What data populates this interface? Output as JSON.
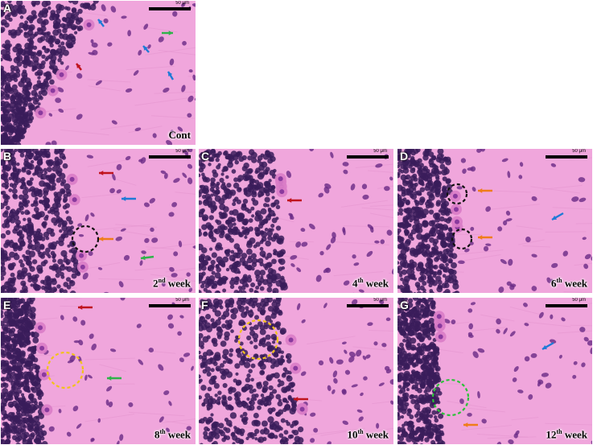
{
  "scale_bar_label": "50 μm",
  "week_word": "week",
  "panels": [
    {
      "letter": "A",
      "caption": "Cont"
    },
    {
      "letter": "B",
      "num": "2",
      "sup": "nd"
    },
    {
      "letter": "C",
      "num": "4",
      "sup": "th"
    },
    {
      "letter": "D",
      "num": "6",
      "sup": "th"
    },
    {
      "letter": "E",
      "num": "8",
      "sup": "th"
    },
    {
      "letter": "F",
      "num": "10",
      "sup": "th"
    },
    {
      "letter": "G",
      "num": "12",
      "sup": "th"
    }
  ],
  "colors": {
    "tissue": "#f0a6dc",
    "granular": "#3a1c5a",
    "nucleus": "#6a2a86",
    "arrow_red": "#c0141e",
    "arrow_blue": "#1f7ad6",
    "arrow_green": "#2fb34a",
    "arrow_orange": "#ef7d1a",
    "circle_yellow": "#f2c21a",
    "circle_black": "#111111",
    "circle_green": "#2cc23a"
  }
}
